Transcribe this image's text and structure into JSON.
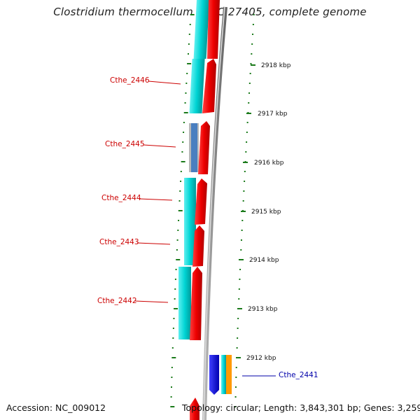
{
  "title": "Clostridium thermocellum ATCC 27405, complete genome",
  "accession": "Accession: NC_009012",
  "topology": "Topology: circular; Length: 3,843,301 bp; Genes: 3,259",
  "kbp_ticks": [
    {
      "label": "2918 kbp"
    },
    {
      "label": "2917 kbp"
    },
    {
      "label": "2916 kbp"
    },
    {
      "label": "2915 kbp"
    },
    {
      "label": "2914 kbp"
    },
    {
      "label": "2913 kbp"
    },
    {
      "label": "2912 kbp"
    }
  ],
  "gene_labels": [
    {
      "label": "Cthe_2446",
      "color": "#cc0000"
    },
    {
      "label": "Cthe_2445",
      "color": "#cc0000"
    },
    {
      "label": "Cthe_2444",
      "color": "#cc0000"
    },
    {
      "label": "Cthe_2443",
      "color": "#cc0000"
    },
    {
      "label": "Cthe_2442",
      "color": "#cc0000"
    },
    {
      "label": "Cthe_2441",
      "color": "#0000aa"
    }
  ],
  "colors": {
    "cds": "#ff0000",
    "feature_cyan": "#00d0d0",
    "feature_blue": "#1010ee",
    "feature_orange": "#ff9900",
    "backbone": "#888888",
    "ticks": "#1a7a1a"
  }
}
